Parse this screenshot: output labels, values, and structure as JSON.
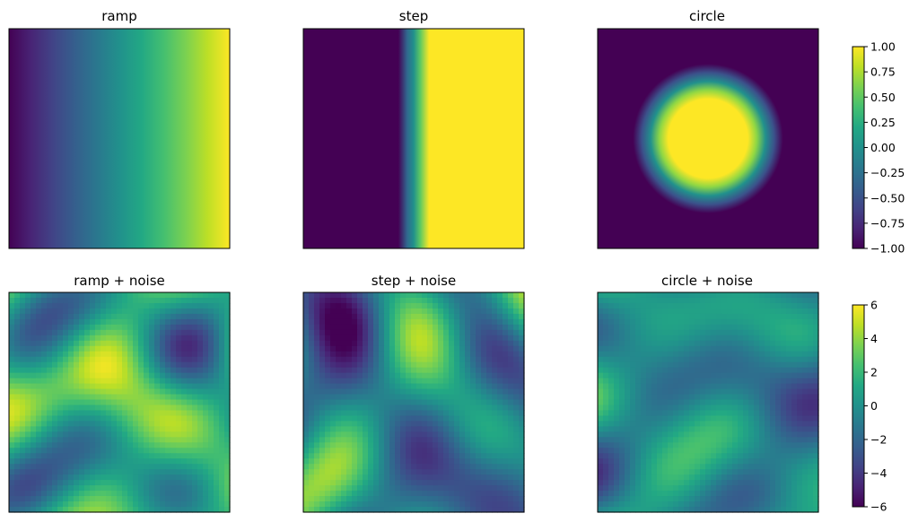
{
  "chart_data": [
    {
      "type": "heatmap",
      "title": "ramp",
      "kind": "ramp",
      "colormap": "viridis",
      "vmin": -1,
      "vmax": 1,
      "values_description_x_range": [
        -1,
        1
      ]
    },
    {
      "type": "heatmap",
      "title": "step",
      "kind": "step",
      "colormap": "viridis",
      "vmin": -1,
      "vmax": 1
    },
    {
      "type": "heatmap",
      "title": "circle",
      "kind": "circle",
      "colormap": "viridis",
      "vmin": -1,
      "vmax": 1
    },
    {
      "type": "heatmap",
      "title": "ramp + noise",
      "kind": "noise",
      "colormap": "viridis",
      "vmin": -6,
      "vmax": 6
    },
    {
      "type": "heatmap",
      "title": "step + noise",
      "kind": "noise",
      "colormap": "viridis",
      "vmin": -6,
      "vmax": 6
    },
    {
      "type": "heatmap",
      "title": "circle + noise",
      "kind": "noise",
      "colormap": "viridis",
      "vmin": -6,
      "vmax": 6
    }
  ],
  "colorbars": [
    {
      "colormap": "viridis",
      "ticks": [
        "1.00",
        "0.75",
        "0.50",
        "0.25",
        "0.00",
        "−0.25",
        "−0.50",
        "−0.75",
        "−1.00"
      ],
      "range": [
        -1,
        1
      ]
    },
    {
      "colormap": "viridis",
      "ticks": [
        "6",
        "4",
        "2",
        "0",
        "−2",
        "−4",
        "−6"
      ],
      "range": [
        -6,
        6
      ]
    }
  ]
}
